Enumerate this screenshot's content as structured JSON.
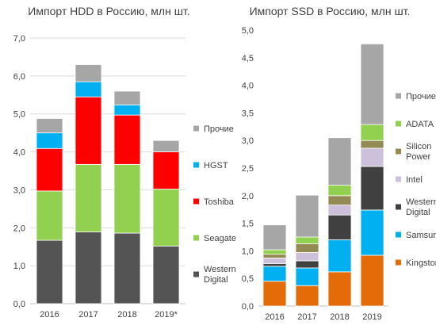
{
  "chart_data": [
    {
      "type": "bar",
      "stacked": true,
      "title": "Импорт HDD в Россию, млн шт.",
      "categories": [
        "2016",
        "2017",
        "2018",
        "2019*"
      ],
      "ylim": [
        0,
        7
      ],
      "yticks": [
        "0,0",
        "1,0",
        "2,0",
        "3,0",
        "4,0",
        "5,0",
        "6,0",
        "7,0"
      ],
      "grid": true,
      "legend_position": "right",
      "series": [
        {
          "name": "Western Digital",
          "color": "#545454",
          "values": [
            1.67,
            1.89,
            1.86,
            1.52
          ]
        },
        {
          "name": "Seagate",
          "color": "#92d050",
          "values": [
            1.3,
            1.78,
            1.81,
            1.5
          ]
        },
        {
          "name": "Toshiba",
          "color": "#ff0000",
          "values": [
            1.12,
            1.78,
            1.3,
            0.98
          ]
        },
        {
          "name": "HGST",
          "color": "#00b0f0",
          "values": [
            0.41,
            0.4,
            0.27,
            0.0
          ]
        },
        {
          "name": "Прочие",
          "color": "#a6a6a6",
          "values": [
            0.38,
            0.45,
            0.36,
            0.3
          ]
        }
      ]
    },
    {
      "type": "bar",
      "stacked": true,
      "title": "Импорт SSD в Россию, млн шт.",
      "categories": [
        "2016",
        "2017",
        "2018",
        "2019"
      ],
      "ylim": [
        0,
        5
      ],
      "yticks": [
        "0,0",
        "0,5",
        "1,0",
        "1,5",
        "2,0",
        "2,5",
        "3,0",
        "3,5",
        "4,0",
        "4,5",
        "5,0"
      ],
      "grid": false,
      "legend_position": "right",
      "series": [
        {
          "name": "Kingston",
          "color": "#e36c09",
          "values": [
            0.45,
            0.37,
            0.62,
            0.92
          ]
        },
        {
          "name": "Samsung",
          "color": "#00b0f0",
          "values": [
            0.27,
            0.32,
            0.58,
            0.82
          ]
        },
        {
          "name": "Western Digital",
          "color": "#404040",
          "values": [
            0.05,
            0.13,
            0.45,
            0.79
          ]
        },
        {
          "name": "Intel",
          "color": "#ccc0da",
          "values": [
            0.1,
            0.15,
            0.18,
            0.33
          ]
        },
        {
          "name": "Silicon Power",
          "color": "#948a54",
          "values": [
            0.07,
            0.16,
            0.17,
            0.14
          ]
        },
        {
          "name": "ADATA",
          "color": "#92d050",
          "values": [
            0.08,
            0.12,
            0.19,
            0.29
          ]
        },
        {
          "name": "Прочие",
          "color": "#a6a6a6",
          "values": [
            0.45,
            0.76,
            0.86,
            1.46
          ]
        }
      ]
    }
  ]
}
